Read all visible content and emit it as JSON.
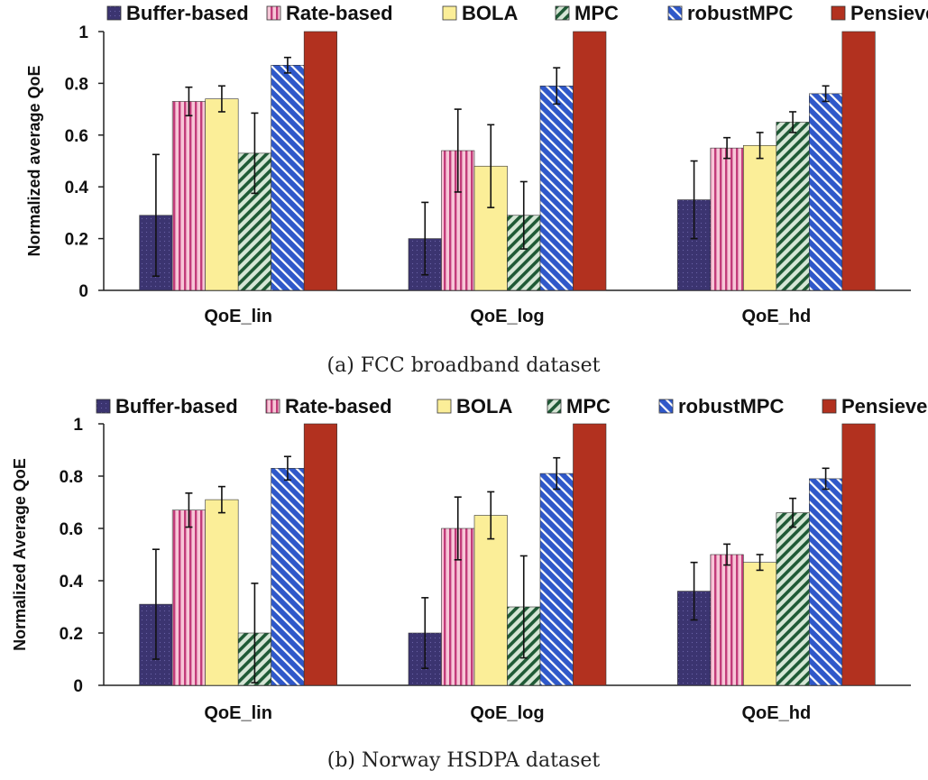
{
  "colors": {
    "buffer": "#3b3470",
    "rate_bg": "#f7c6d7",
    "rate_line": "#c23c7a",
    "bola": "#fbee98",
    "mpc_bg": "#d6e6d6",
    "mpc_line": "#1f5a36",
    "robust_bg": "#2f58c9",
    "robust_line": "#ffffff",
    "pensieve": "#b2311f"
  },
  "chart_data": [
    {
      "type": "bar",
      "caption": "(a) FCC broadband dataset",
      "ylabel": "Normalized average QoE",
      "ylim": [
        0,
        1
      ],
      "yticks": [
        "0",
        "0.2",
        "0.4",
        "0.6",
        "0.8",
        "1"
      ],
      "categories": [
        "QoE_lin",
        "QoE_log",
        "QoE_hd"
      ],
      "legend_position": "top",
      "series": [
        {
          "name": "Buffer-based",
          "values": [
            0.29,
            0.2,
            0.35
          ],
          "errors": [
            0.235,
            0.14,
            0.15
          ]
        },
        {
          "name": "Rate-based",
          "values": [
            0.73,
            0.54,
            0.55
          ],
          "errors": [
            0.055,
            0.16,
            0.04
          ]
        },
        {
          "name": "BOLA",
          "values": [
            0.74,
            0.48,
            0.56
          ],
          "errors": [
            0.05,
            0.16,
            0.05
          ]
        },
        {
          "name": "MPC",
          "values": [
            0.53,
            0.29,
            0.65
          ],
          "errors": [
            0.155,
            0.13,
            0.04
          ]
        },
        {
          "name": "robustMPC",
          "values": [
            0.87,
            0.79,
            0.76
          ],
          "errors": [
            0.03,
            0.07,
            0.03
          ]
        },
        {
          "name": "Pensieve",
          "values": [
            1.0,
            1.0,
            1.0
          ],
          "errors": [
            0,
            0,
            0
          ]
        }
      ]
    },
    {
      "type": "bar",
      "caption": "(b) Norway HSDPA dataset",
      "ylabel": "Normalized Average QoE",
      "ylim": [
        0,
        1
      ],
      "yticks": [
        "0",
        "0.2",
        "0.4",
        "0.6",
        "0.8",
        "1"
      ],
      "categories": [
        "QoE_lin",
        "QoE_log",
        "QoE_hd"
      ],
      "legend_position": "top",
      "series": [
        {
          "name": "Buffer-based",
          "values": [
            0.31,
            0.2,
            0.36
          ],
          "errors": [
            0.21,
            0.135,
            0.11
          ]
        },
        {
          "name": "Rate-based",
          "values": [
            0.67,
            0.6,
            0.5
          ],
          "errors": [
            0.065,
            0.12,
            0.04
          ]
        },
        {
          "name": "BOLA",
          "values": [
            0.71,
            0.65,
            0.47
          ],
          "errors": [
            0.05,
            0.09,
            0.03
          ]
        },
        {
          "name": "MPC",
          "values": [
            0.2,
            0.3,
            0.66
          ],
          "errors": [
            0.19,
            0.195,
            0.055
          ]
        },
        {
          "name": "robustMPC",
          "values": [
            0.83,
            0.81,
            0.79
          ],
          "errors": [
            0.045,
            0.06,
            0.04
          ]
        },
        {
          "name": "Pensieve",
          "values": [
            1.0,
            1.0,
            1.0
          ],
          "errors": [
            0,
            0,
            0
          ]
        }
      ]
    }
  ]
}
